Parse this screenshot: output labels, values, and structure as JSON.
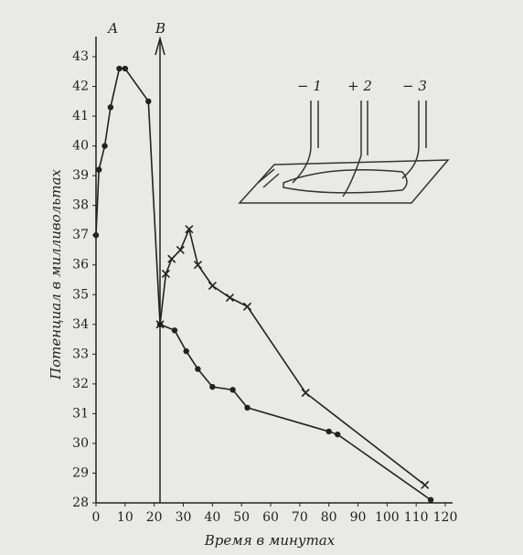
{
  "chart_data": {
    "type": "line",
    "xlabel": "Время в минутах",
    "ylabel": "Потенциал в милливольтах",
    "annotations": [
      "А",
      "В",
      "− 1",
      "+ 2",
      "− 3"
    ],
    "xlim": [
      0,
      120
    ],
    "ylim": [
      28,
      43
    ],
    "xticks": [
      0,
      10,
      20,
      30,
      40,
      50,
      60,
      70,
      80,
      90,
      100,
      110,
      120
    ],
    "yticks": [
      28,
      29,
      30,
      31,
      32,
      33,
      34,
      35,
      36,
      37,
      38,
      39,
      40,
      41,
      42,
      43
    ],
    "series": [
      {
        "color": "#222",
        "marker": "dot",
        "x": [
          0,
          1,
          3,
          5,
          8,
          10,
          18,
          22,
          27,
          31,
          35,
          40,
          47,
          52,
          80,
          83,
          115
        ],
        "values": [
          37,
          39.2,
          40,
          41.3,
          42.6,
          42.6,
          41.5,
          34.0,
          33.8,
          33.1,
          32.5,
          31.9,
          31.8,
          31.2,
          30.4,
          30.3,
          28.1
        ]
      },
      {
        "color": "#222",
        "marker": "cross",
        "x": [
          22,
          24,
          26,
          29,
          32,
          35,
          40,
          46,
          52,
          72,
          113
        ],
        "values": [
          34.0,
          35.7,
          36.2,
          36.5,
          37.2,
          36.0,
          35.3,
          34.9,
          34.6,
          31.7,
          28.6
        ]
      }
    ]
  }
}
